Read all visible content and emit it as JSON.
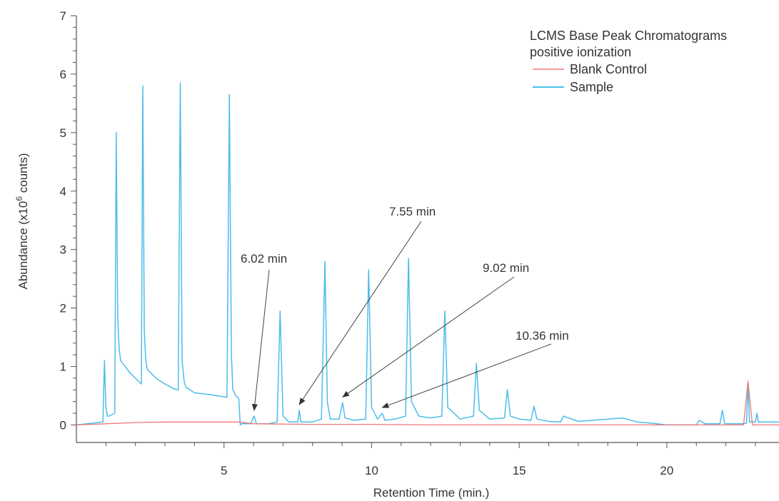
{
  "chart_data": {
    "type": "line",
    "ylabel": "Abundance (x10",
    "ylabel_exp": "6",
    "ylabel_suffix": " counts)",
    "xlabel": "Retention Time (min.)",
    "xlim": [
      0,
      23.8
    ],
    "ylim": [
      -0.3,
      7
    ],
    "x_ticks": [
      5,
      10,
      15,
      20
    ],
    "y_ticks": [
      0,
      1,
      2,
      3,
      4,
      5,
      6,
      7
    ],
    "grid": false,
    "legend": {
      "placement": "top-right",
      "title_line1": "LCMS Base Peak Chromatograms",
      "title_line2": "positive ionization",
      "entries": [
        {
          "name": "Blank Control",
          "color": "#f07878"
        },
        {
          "name": "Sample",
          "color": "#4cbde8"
        }
      ]
    },
    "series": [
      {
        "name": "Blank Control",
        "color": "#f07878",
        "x": [
          0,
          1,
          2,
          3,
          4,
          5,
          5.5,
          6,
          8,
          10,
          12,
          15,
          18,
          20,
          21,
          22,
          22.6,
          22.75,
          22.9,
          23.8
        ],
        "y": [
          0.0,
          0.02,
          0.04,
          0.05,
          0.05,
          0.05,
          0.05,
          0.02,
          0.01,
          0.01,
          0.0,
          0.0,
          0.0,
          0.0,
          0.0,
          0.0,
          0.0,
          0.75,
          0.0,
          0.0
        ]
      },
      {
        "name": "Sample",
        "color": "#4cbde8",
        "x": [
          0.0,
          0.9,
          0.95,
          1.0,
          1.05,
          1.1,
          1.3,
          1.35,
          1.4,
          1.45,
          1.5,
          1.8,
          2.1,
          2.2,
          2.25,
          2.3,
          2.35,
          2.4,
          2.7,
          3.0,
          3.3,
          3.45,
          3.52,
          3.58,
          3.65,
          3.7,
          4.0,
          4.5,
          5.0,
          5.1,
          5.18,
          5.25,
          5.3,
          5.4,
          5.5,
          5.55,
          5.6,
          5.9,
          6.02,
          6.1,
          6.5,
          6.8,
          6.9,
          7.0,
          7.2,
          7.5,
          7.55,
          7.6,
          8.0,
          8.3,
          8.42,
          8.5,
          8.6,
          8.9,
          9.02,
          9.1,
          9.4,
          9.8,
          9.9,
          10.0,
          10.2,
          10.36,
          10.45,
          10.8,
          11.15,
          11.25,
          11.35,
          11.6,
          12.0,
          12.38,
          12.48,
          12.58,
          13.0,
          13.45,
          13.55,
          13.65,
          14.0,
          14.5,
          14.6,
          14.7,
          15.0,
          15.4,
          15.5,
          15.6,
          16.0,
          16.4,
          16.5,
          17.0,
          17.5,
          18.0,
          18.5,
          19.0,
          19.5,
          20.0,
          20.5,
          21.0,
          21.1,
          21.3,
          21.8,
          21.88,
          21.96,
          22.5,
          22.7,
          22.75,
          22.8,
          23.0,
          23.05,
          23.1,
          23.8
        ],
        "y": [
          0.0,
          0.05,
          1.1,
          0.3,
          0.15,
          0.15,
          0.2,
          5.0,
          1.8,
          1.3,
          1.1,
          0.9,
          0.75,
          0.7,
          5.8,
          1.6,
          1.1,
          0.95,
          0.8,
          0.7,
          0.62,
          0.6,
          5.85,
          1.1,
          0.75,
          0.65,
          0.55,
          0.52,
          0.48,
          0.47,
          5.65,
          1.2,
          0.6,
          0.5,
          0.45,
          0.0,
          0.02,
          0.02,
          0.15,
          0.02,
          0.02,
          0.05,
          1.95,
          0.15,
          0.05,
          0.05,
          0.25,
          0.05,
          0.05,
          0.1,
          2.8,
          0.4,
          0.1,
          0.1,
          0.38,
          0.12,
          0.08,
          0.1,
          2.65,
          0.3,
          0.1,
          0.2,
          0.08,
          0.1,
          0.15,
          2.85,
          0.4,
          0.15,
          0.12,
          0.15,
          1.95,
          0.3,
          0.1,
          0.15,
          1.05,
          0.25,
          0.1,
          0.12,
          0.6,
          0.15,
          0.1,
          0.08,
          0.32,
          0.1,
          0.06,
          0.05,
          0.15,
          0.06,
          0.08,
          0.1,
          0.12,
          0.05,
          0.03,
          0.0,
          0.0,
          0.0,
          0.08,
          0.02,
          0.02,
          0.25,
          0.02,
          0.02,
          0.03,
          0.7,
          0.05,
          0.05,
          0.2,
          0.05,
          0.05
        ]
      }
    ],
    "annotations": [
      {
        "label": "6.02 min",
        "x": 6.02,
        "y": 0.15
      },
      {
        "label": "7.55 min",
        "x": 7.55,
        "y": 0.25
      },
      {
        "label": "9.02 min",
        "x": 9.02,
        "y": 0.38
      },
      {
        "label": "10.36 min",
        "x": 10.36,
        "y": 0.2
      }
    ]
  }
}
